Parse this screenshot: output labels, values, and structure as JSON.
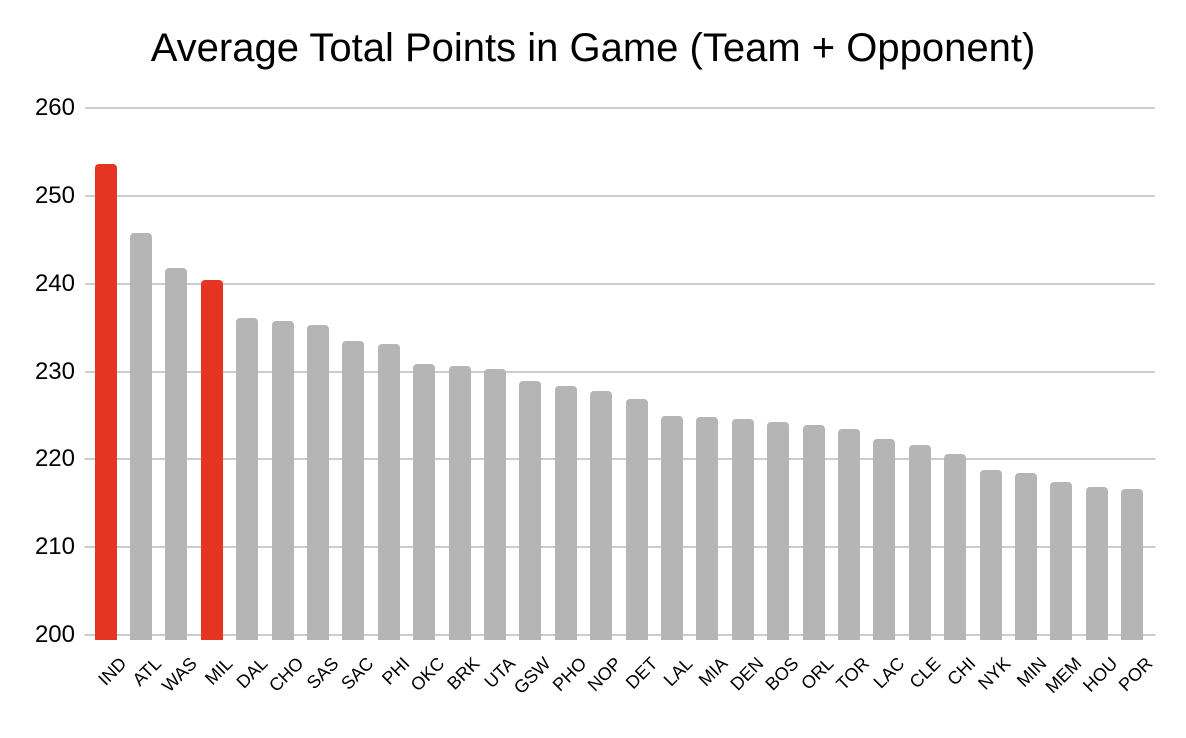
{
  "chart_data": {
    "type": "bar",
    "title": "Average Total Points in Game (Team + Opponent)",
    "categories": [
      "IND",
      "ATL",
      "WAS",
      "MIL",
      "DAL",
      "CHO",
      "SAS",
      "SAC",
      "PHI",
      "OKC",
      "BRK",
      "UTA",
      "GSW",
      "PHO",
      "NOP",
      "DET",
      "LAL",
      "MIA",
      "DEN",
      "BOS",
      "ORL",
      "TOR",
      "LAC",
      "CLE",
      "CHI",
      "NYK",
      "MIN",
      "MEM",
      "HOU",
      "POR"
    ],
    "values": [
      253.6,
      245.8,
      241.8,
      240.4,
      236.1,
      235.8,
      235.3,
      233.5,
      233.1,
      230.8,
      230.6,
      230.3,
      228.9,
      228.3,
      227.8,
      226.9,
      224.9,
      224.8,
      224.6,
      224.3,
      223.9,
      223.5,
      222.3,
      221.6,
      220.6,
      218.8,
      218.4,
      217.4,
      216.8,
      216.6
    ],
    "highlighted_categories": [
      "IND",
      "MIL"
    ],
    "xlabel": "",
    "ylabel": "",
    "ylim": [
      200,
      260
    ],
    "yticks": [
      260,
      250,
      240,
      230,
      220,
      210,
      200
    ],
    "grid": "horizontal",
    "legend_position": "none",
    "colors": {
      "bar_default": "#b5b5b5",
      "bar_highlight": "#e63423",
      "gridline": "#cccccc",
      "text": "#000000",
      "background": "#ffffff"
    }
  }
}
